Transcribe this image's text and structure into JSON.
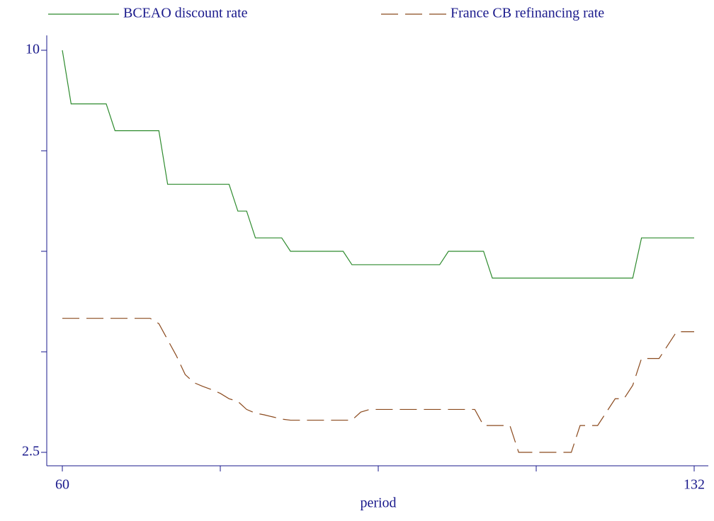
{
  "chart_data": {
    "type": "line",
    "x": [
      60,
      61,
      62,
      63,
      64,
      65,
      66,
      67,
      68,
      69,
      70,
      71,
      72,
      73,
      74,
      75,
      76,
      77,
      78,
      79,
      80,
      81,
      82,
      83,
      84,
      85,
      86,
      87,
      88,
      89,
      90,
      91,
      92,
      93,
      94,
      95,
      96,
      97,
      98,
      99,
      100,
      101,
      102,
      103,
      104,
      105,
      106,
      107,
      108,
      109,
      110,
      111,
      112,
      113,
      114,
      115,
      116,
      117,
      118,
      119,
      120,
      121,
      122,
      123,
      124,
      125,
      126,
      127,
      128,
      129,
      130,
      131,
      132
    ],
    "series": [
      {
        "name": "BCEAO discount rate",
        "color": "#2e8b2e",
        "dash": "solid",
        "values": [
          10,
          9,
          9,
          9,
          9,
          9,
          8.5,
          8.5,
          8.5,
          8.5,
          8.5,
          8.5,
          7.5,
          7.5,
          7.5,
          7.5,
          7.5,
          7.5,
          7.5,
          7.5,
          7,
          7,
          6.5,
          6.5,
          6.5,
          6.5,
          6.25,
          6.25,
          6.25,
          6.25,
          6.25,
          6.25,
          6.25,
          6,
          6,
          6,
          6,
          6,
          6,
          6,
          6,
          6,
          6,
          6,
          6.25,
          6.25,
          6.25,
          6.25,
          6.25,
          5.75,
          5.75,
          5.75,
          5.75,
          5.75,
          5.75,
          5.75,
          5.75,
          5.75,
          5.75,
          5.75,
          5.75,
          5.75,
          5.75,
          5.75,
          5.75,
          5.75,
          6.5,
          6.5,
          6.5,
          6.5,
          6.5,
          6.5,
          6.5
        ]
      },
      {
        "name": "France CB refinancing rate",
        "color": "#8b4a1e",
        "dash": "dashed",
        "values": [
          5,
          5,
          5,
          5,
          5,
          5,
          5,
          5,
          5,
          5,
          5,
          4.9,
          4.6,
          4.3,
          3.95,
          3.8,
          3.73,
          3.67,
          3.6,
          3.5,
          3.45,
          3.3,
          3.23,
          3.2,
          3.16,
          3.12,
          3.1,
          3.1,
          3.1,
          3.1,
          3.1,
          3.1,
          3.1,
          3.1,
          3.25,
          3.3,
          3.3,
          3.3,
          3.3,
          3.3,
          3.3,
          3.3,
          3.3,
          3.3,
          3.3,
          3.3,
          3.3,
          3.3,
          3,
          3,
          3,
          3,
          2.5,
          2.5,
          2.5,
          2.5,
          2.5,
          2.5,
          2.5,
          3,
          3,
          3,
          3.25,
          3.5,
          3.5,
          3.75,
          4.25,
          4.25,
          4.25,
          4.5,
          4.75,
          4.75,
          4.75
        ]
      }
    ],
    "xlabel": "period",
    "xlim": [
      60,
      132
    ],
    "xticks": [
      60,
      132
    ],
    "xminor_ticks": [
      78,
      96,
      114
    ],
    "ylim": [
      2.5,
      10
    ],
    "yticks": [
      2.5,
      10
    ],
    "yminor_ticks": [
      4.375,
      6.25,
      8.125
    ]
  }
}
